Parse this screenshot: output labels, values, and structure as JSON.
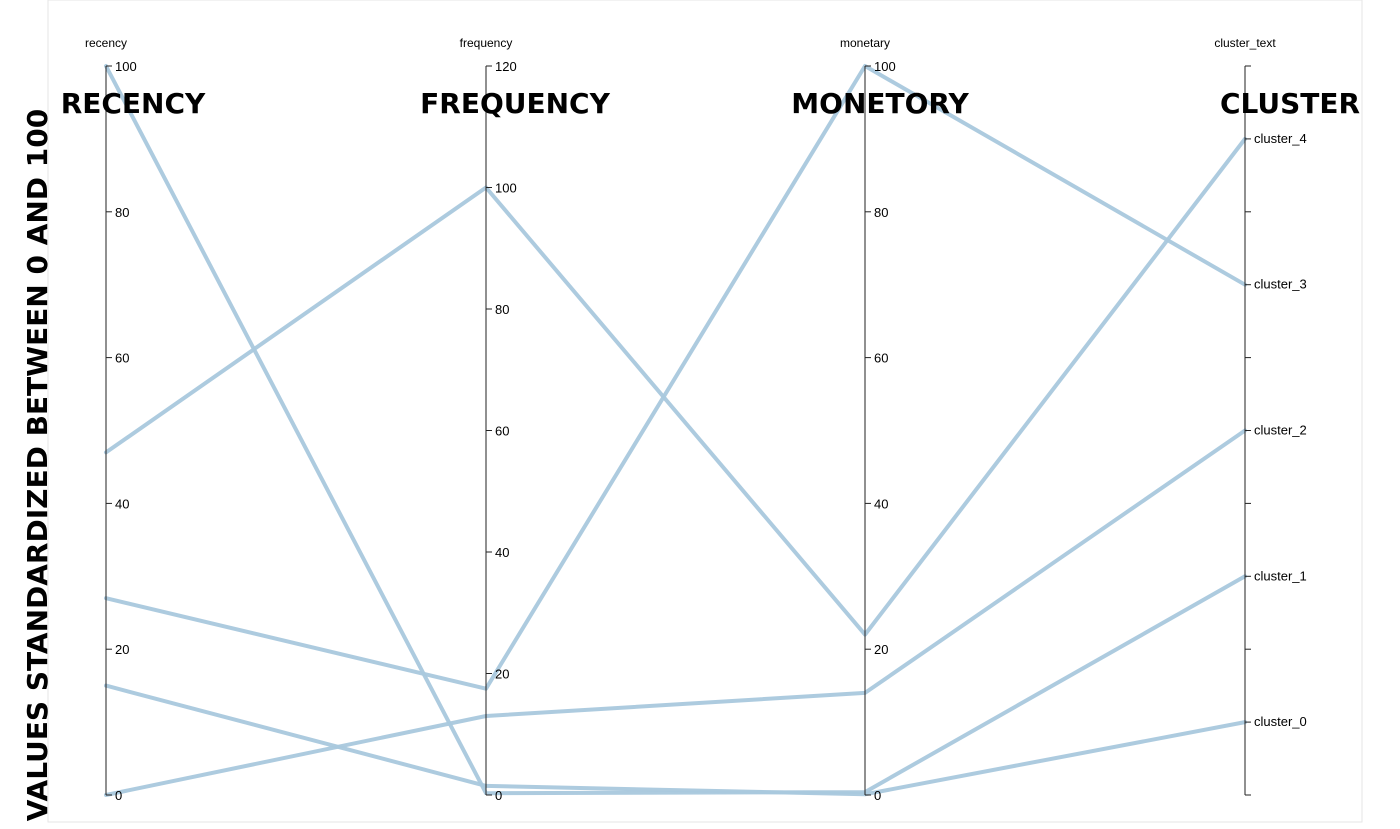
{
  "chart_data": {
    "type": "parallel-coordinates",
    "ylabel": "VALUES STANDARDIZED BETWEEN 0 AND 100",
    "colors": {
      "line": "#a9c8dd",
      "axis": "#222222"
    },
    "axes": [
      {
        "key": "recency",
        "label": "recency",
        "title": "RECENCY",
        "type": "linear",
        "range": [
          0,
          100
        ],
        "ticks": [
          0,
          20,
          40,
          60,
          80,
          100
        ]
      },
      {
        "key": "frequency",
        "label": "frequency",
        "title": "FREQUENCY",
        "type": "linear",
        "range": [
          0,
          120
        ],
        "ticks": [
          0,
          20,
          40,
          60,
          80,
          100,
          120
        ]
      },
      {
        "key": "monetary",
        "label": "monetary",
        "title": "MONETORY",
        "type": "linear",
        "range": [
          0,
          100
        ],
        "ticks": [
          0,
          20,
          40,
          60,
          80,
          100
        ]
      },
      {
        "key": "cluster_text",
        "label": "cluster_text",
        "title": "CLUSTER",
        "type": "categorical",
        "categories": [
          "cluster_0",
          "cluster_1",
          "cluster_2",
          "cluster_3",
          "cluster_4"
        ]
      }
    ],
    "series": [
      {
        "values": [
          100,
          0.3,
          0.4,
          "cluster_1"
        ]
      },
      {
        "values": [
          47,
          100,
          22,
          "cluster_4"
        ]
      },
      {
        "values": [
          27,
          17.5,
          100,
          "cluster_3"
        ]
      },
      {
        "values": [
          15,
          1.5,
          0.1,
          "cluster_0"
        ]
      },
      {
        "values": [
          0,
          13,
          14,
          "cluster_2"
        ]
      }
    ]
  }
}
